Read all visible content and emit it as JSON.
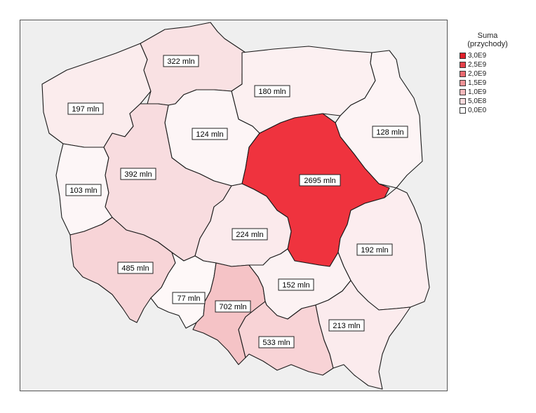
{
  "legend": {
    "title_line1": "Suma",
    "title_line2": "(przychody)",
    "items": [
      {
        "label": "3,0E9",
        "color": "#e0202a"
      },
      {
        "label": "2,5E9",
        "color": "#e54049"
      },
      {
        "label": "2,0E9",
        "color": "#eb6a70"
      },
      {
        "label": "1,5E9",
        "color": "#f09296"
      },
      {
        "label": "1,0E9",
        "color": "#f5b8bb"
      },
      {
        "label": "5,0E8",
        "color": "#f9dcde"
      },
      {
        "label": "0,0E0",
        "color": "#ffffff"
      }
    ]
  },
  "regions": [
    {
      "id": "zachodniopomorskie",
      "label": "197 mln",
      "value": 197,
      "color": "#fbeced"
    },
    {
      "id": "pomorskie",
      "label": "322 mln",
      "value": 322,
      "color": "#f9e1e3"
    },
    {
      "id": "warminsko-mazurskie",
      "label": "180 mln",
      "value": 180,
      "color": "#fcf0f1"
    },
    {
      "id": "podlaskie",
      "label": "128 mln",
      "value": 128,
      "color": "#fdf4f5"
    },
    {
      "id": "kujawsko-pomorskie",
      "label": "124 mln",
      "value": 124,
      "color": "#fdf5f6"
    },
    {
      "id": "lubuskie",
      "label": "103 mln",
      "value": 103,
      "color": "#fdf6f7"
    },
    {
      "id": "wielkopolskie",
      "label": "392 mln",
      "value": 392,
      "color": "#f8dcdf"
    },
    {
      "id": "mazowieckie",
      "label": "2695 mln",
      "value": 2695,
      "color": "#ef333e"
    },
    {
      "id": "lodzkie",
      "label": "224 mln",
      "value": 224,
      "color": "#fbeaec"
    },
    {
      "id": "lubelskie",
      "label": "192 mln",
      "value": 192,
      "color": "#fcedef"
    },
    {
      "id": "dolnoslaskie",
      "label": "485 mln",
      "value": 485,
      "color": "#f7d4d7"
    },
    {
      "id": "opolskie",
      "label": "77 mln",
      "value": 77,
      "color": "#fef8f8"
    },
    {
      "id": "slaskie",
      "label": "702 mln",
      "value": 702,
      "color": "#f5c3c6"
    },
    {
      "id": "swietokrzyskie",
      "label": "152 mln",
      "value": 152,
      "color": "#fcf2f3"
    },
    {
      "id": "malopolskie",
      "label": "533 mln",
      "value": 533,
      "color": "#f8d3d6"
    },
    {
      "id": "podkarpackie",
      "label": "213 mln",
      "value": 213,
      "color": "#fbebed"
    }
  ]
}
